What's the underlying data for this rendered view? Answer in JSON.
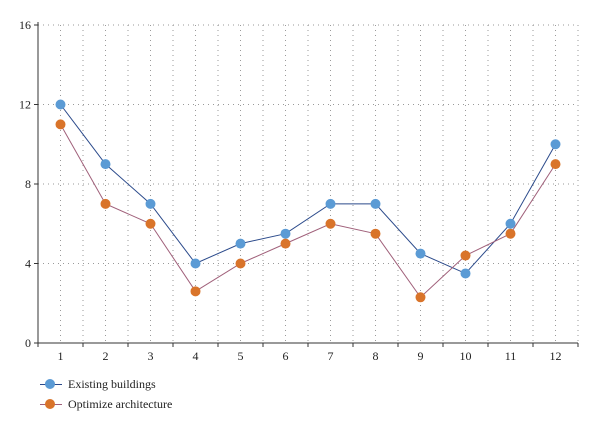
{
  "chart_data": {
    "type": "line",
    "title": "",
    "xlabel": "",
    "ylabel": "",
    "x": [
      1,
      2,
      3,
      4,
      5,
      6,
      7,
      8,
      9,
      10,
      11,
      12
    ],
    "xlim": [
      0.5,
      12.5
    ],
    "ylim": [
      0,
      16
    ],
    "yticks": [
      0,
      4,
      8,
      12,
      16
    ],
    "grid": true,
    "legend_position": "bottom-left",
    "series": [
      {
        "name": "Existing buildings",
        "line_color": "#2b4a8b",
        "marker_color": "#5b9bd5",
        "values": [
          12,
          9,
          7,
          4,
          5,
          5.5,
          7,
          7,
          4.5,
          3.5,
          6,
          10
        ]
      },
      {
        "name": "Optimize architecture",
        "line_color": "#a0607a",
        "marker_color": "#d9742a",
        "values": [
          11,
          7,
          6,
          2.6,
          4,
          5,
          6,
          5.5,
          2.3,
          4.4,
          5.5,
          9
        ]
      }
    ]
  }
}
